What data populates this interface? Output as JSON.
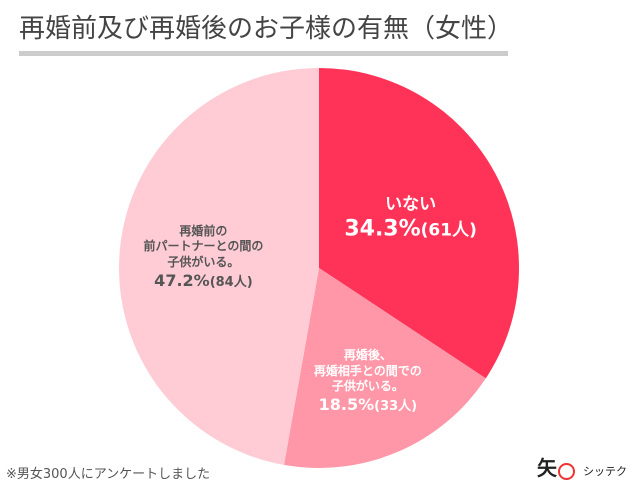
{
  "chart_data": {
    "type": "pie",
    "title": "再婚前及び再婚後のお子様の有無（女性）",
    "slices": [
      {
        "label": "いない",
        "percent": 34.3,
        "count": "(61人)",
        "color": "#ff3358",
        "text_color": "#ffffff"
      },
      {
        "label": "再婚後、\n再婚相手との間での\n子供がいる。",
        "percent": 18.5,
        "count": "(33人)",
        "color": "#ff97a8",
        "text_color": "#ffffff"
      },
      {
        "label": "再婚前の\n前パートナーとの間の\n子供がいる。",
        "percent": 47.2,
        "count": "(84人)",
        "color": "#ffccd5",
        "text_color": "#555555"
      }
    ],
    "note": "※男女300人にアンケートしました"
  },
  "logo": {
    "mark": "矢",
    "name": "シッテク"
  }
}
